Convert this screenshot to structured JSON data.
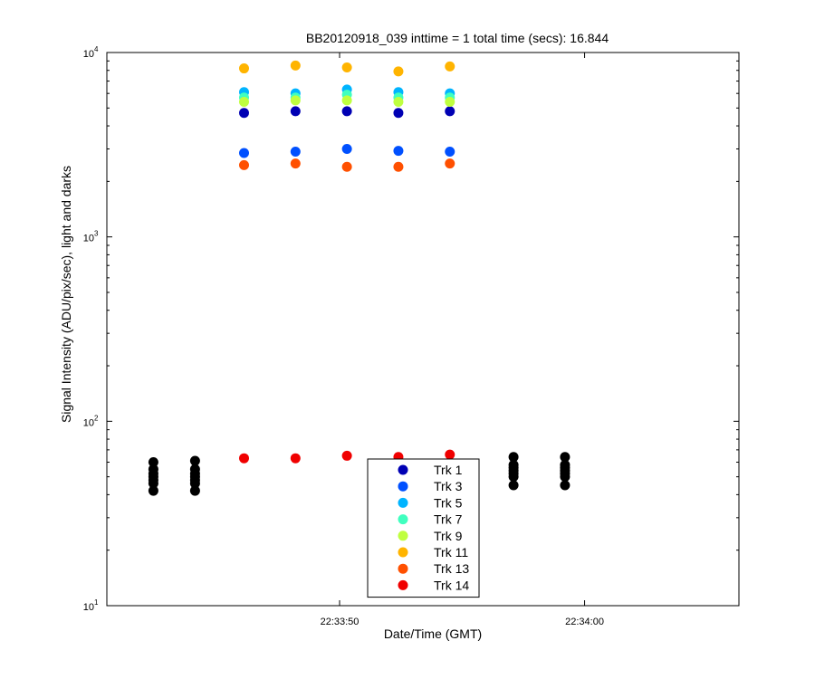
{
  "chart_data": {
    "type": "scatter",
    "title": "BB20120918_039 inttime = 1 total time (secs): 16.844",
    "xlabel": "Date/Time (GMT)",
    "ylabel": "Signal Intensity (ADU/pix/sec), light and darks",
    "yscale": "log",
    "ylim": [
      10,
      10000
    ],
    "xlim": [
      "22:33:40.5",
      "22:34:06.3"
    ],
    "x_ticks": [
      {
        "value": "22:33:50",
        "label": "22:33:50"
      },
      {
        "value": "22:34:00",
        "label": "22:34:00"
      }
    ],
    "y_ticks": [
      {
        "value": 10,
        "base": "10",
        "exp": "1"
      },
      {
        "value": 100,
        "base": "10",
        "exp": "2"
      },
      {
        "value": 1000,
        "base": "10",
        "exp": "3"
      },
      {
        "value": 10000,
        "base": "10",
        "exp": "4"
      }
    ],
    "grid": false,
    "legend_position": "bottom-center",
    "series": [
      {
        "name": "Trk 1",
        "color": "#0000b4",
        "x": [
          "22:33:46.1",
          "22:33:48.2",
          "22:33:50.3",
          "22:33:52.4",
          "22:33:54.5"
        ],
        "y": [
          4700,
          4800,
          4800,
          4700,
          4800
        ]
      },
      {
        "name": "Trk 3",
        "color": "#0050ff",
        "x": [
          "22:33:46.1",
          "22:33:48.2",
          "22:33:50.3",
          "22:33:52.4",
          "22:33:54.5"
        ],
        "y": [
          2850,
          2900,
          3000,
          2930,
          2900
        ]
      },
      {
        "name": "Trk 5",
        "color": "#00b4ff",
        "x": [
          "22:33:46.1",
          "22:33:48.2",
          "22:33:50.3",
          "22:33:52.4",
          "22:33:54.5"
        ],
        "y": [
          6100,
          6000,
          6300,
          6100,
          6000
        ]
      },
      {
        "name": "Trk 7",
        "color": "#40ffbf",
        "x": [
          "22:33:46.1",
          "22:33:48.2",
          "22:33:50.3",
          "22:33:52.4",
          "22:33:54.5"
        ],
        "y": [
          5700,
          5700,
          5900,
          5700,
          5700
        ]
      },
      {
        "name": "Trk 9",
        "color": "#bfff40",
        "x": [
          "22:33:46.1",
          "22:33:48.2",
          "22:33:50.3",
          "22:33:52.4",
          "22:33:54.5"
        ],
        "y": [
          5400,
          5500,
          5500,
          5400,
          5400
        ]
      },
      {
        "name": "Trk 11",
        "color": "#ffb400",
        "x": [
          "22:33:46.1",
          "22:33:48.2",
          "22:33:50.3",
          "22:33:52.4",
          "22:33:54.5"
        ],
        "y": [
          8200,
          8500,
          8300,
          7900,
          8400
        ]
      },
      {
        "name": "Trk 13",
        "color": "#ff5000",
        "x": [
          "22:33:46.1",
          "22:33:48.2",
          "22:33:50.3",
          "22:33:52.4",
          "22:33:54.5"
        ],
        "y": [
          2450,
          2500,
          2400,
          2400,
          2500
        ]
      },
      {
        "name": "Trk 14",
        "color": "#f00000",
        "x": [
          "22:33:46.1",
          "22:33:48.2",
          "22:33:50.3",
          "22:33:52.4",
          "22:33:54.5"
        ],
        "y": [
          63,
          63,
          65,
          64,
          66
        ]
      },
      {
        "color": "#000000",
        "x": [
          "22:33:42.4",
          "22:33:42.4",
          "22:33:42.4",
          "22:33:42.4",
          "22:33:42.4",
          "22:33:42.4",
          "22:33:42.4",
          "22:33:44.1",
          "22:33:44.1",
          "22:33:44.1",
          "22:33:44.1",
          "22:33:44.1",
          "22:33:44.1",
          "22:33:44.1",
          "22:33:57.1",
          "22:33:57.1",
          "22:33:57.1",
          "22:33:57.1",
          "22:33:57.1",
          "22:33:57.1",
          "22:33:57.1",
          "22:33:59.2",
          "22:33:59.2",
          "22:33:59.2",
          "22:33:59.2",
          "22:33:59.2",
          "22:33:59.2",
          "22:33:59.2"
        ],
        "y": [
          42,
          46,
          48,
          50,
          52,
          55,
          60,
          42,
          46,
          48,
          50,
          52,
          55,
          61,
          45,
          50,
          52,
          54,
          56,
          58,
          64,
          45,
          50,
          52,
          54,
          56,
          58,
          64
        ]
      }
    ]
  }
}
